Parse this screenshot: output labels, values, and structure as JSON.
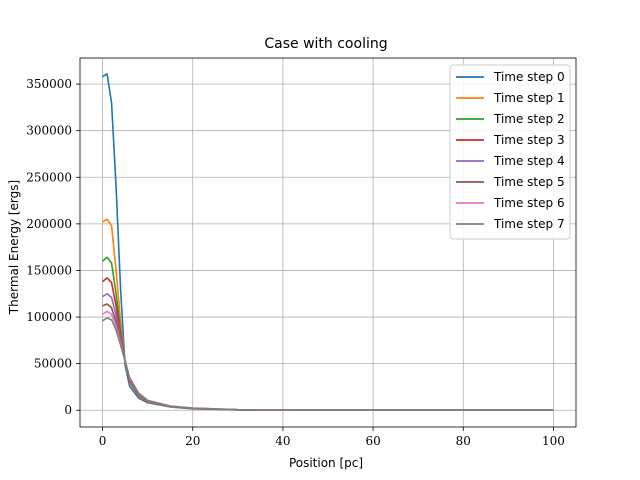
{
  "chart_data": {
    "type": "line",
    "title": "Case with cooling",
    "xlabel": "Position [pc]",
    "ylabel": "Thermal Energy [ergs]",
    "xlim": [
      -5,
      105
    ],
    "ylim": [
      -18000,
      378000
    ],
    "xticks": [
      0,
      20,
      40,
      60,
      80,
      100
    ],
    "yticks": [
      0,
      50000,
      100000,
      150000,
      200000,
      250000,
      300000,
      350000
    ],
    "grid": true,
    "legend_position": "top-right",
    "series": [
      {
        "name": "Time step 0",
        "color": "#1f77b4",
        "x": [
          0,
          1,
          2,
          3,
          4,
          5,
          6,
          8,
          10,
          15,
          20,
          30,
          40,
          60,
          80,
          100
        ],
        "y": [
          358000,
          361000,
          330000,
          240000,
          130000,
          48000,
          26000,
          13000,
          8000,
          3500,
          1500,
          300,
          100,
          0,
          0,
          0
        ]
      },
      {
        "name": "Time step 1",
        "color": "#ff7f0e",
        "x": [
          0,
          1,
          2,
          3,
          4,
          5,
          6,
          8,
          10,
          15,
          20,
          30,
          40,
          60,
          80,
          100
        ],
        "y": [
          202000,
          205000,
          198000,
          150000,
          95000,
          52000,
          30000,
          15000,
          9000,
          3800,
          1700,
          400,
          100,
          0,
          0,
          0
        ]
      },
      {
        "name": "Time step 2",
        "color": "#2ca02c",
        "x": [
          0,
          1,
          2,
          3,
          4,
          5,
          6,
          8,
          10,
          15,
          20,
          30,
          40,
          60,
          80,
          100
        ],
        "y": [
          160000,
          164000,
          158000,
          125000,
          85000,
          53000,
          31000,
          16000,
          9500,
          4000,
          1800,
          400,
          100,
          0,
          0,
          0
        ]
      },
      {
        "name": "Time step 3",
        "color": "#d62728",
        "x": [
          0,
          1,
          2,
          3,
          4,
          5,
          6,
          8,
          10,
          15,
          20,
          30,
          40,
          60,
          80,
          100
        ],
        "y": [
          138000,
          142000,
          137000,
          112000,
          80000,
          53000,
          32000,
          16500,
          9800,
          4100,
          1900,
          450,
          100,
          0,
          0,
          0
        ]
      },
      {
        "name": "Time step 4",
        "color": "#9467bd",
        "x": [
          0,
          1,
          2,
          3,
          4,
          5,
          6,
          8,
          10,
          15,
          20,
          30,
          40,
          60,
          80,
          100
        ],
        "y": [
          122000,
          125000,
          121000,
          102000,
          77000,
          53000,
          33000,
          17000,
          10000,
          4200,
          2000,
          500,
          100,
          0,
          0,
          0
        ]
      },
      {
        "name": "Time step 5",
        "color": "#8c564b",
        "x": [
          0,
          1,
          2,
          3,
          4,
          5,
          6,
          8,
          10,
          15,
          20,
          30,
          40,
          60,
          80,
          100
        ],
        "y": [
          112000,
          114000,
          110000,
          95000,
          74000,
          53000,
          34000,
          17500,
          10200,
          4300,
          2100,
          500,
          100,
          0,
          0,
          0
        ]
      },
      {
        "name": "Time step 6",
        "color": "#e377c2",
        "x": [
          0,
          1,
          2,
          3,
          4,
          5,
          6,
          8,
          10,
          15,
          20,
          30,
          40,
          60,
          80,
          100
        ],
        "y": [
          103000,
          106000,
          103000,
          90000,
          72000,
          53000,
          34500,
          18000,
          10400,
          4400,
          2200,
          550,
          100,
          0,
          0,
          0
        ]
      },
      {
        "name": "Time step 7",
        "color": "#7f7f7f",
        "x": [
          0,
          1,
          2,
          3,
          4,
          5,
          6,
          8,
          10,
          15,
          20,
          30,
          40,
          60,
          80,
          100
        ],
        "y": [
          96000,
          99000,
          97000,
          86000,
          70000,
          52500,
          35000,
          18500,
          10600,
          4500,
          2300,
          600,
          100,
          0,
          0,
          0
        ]
      }
    ]
  }
}
